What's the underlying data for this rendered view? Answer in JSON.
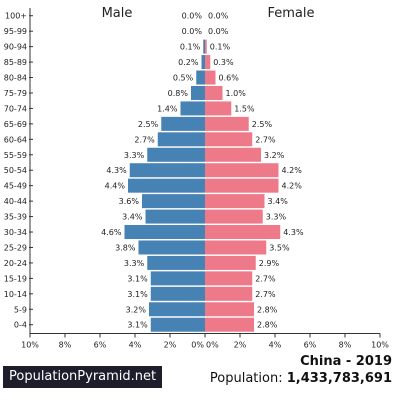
{
  "colors": {
    "male": "#4682b4",
    "female": "#ee7989",
    "axis": "#333333",
    "text": "#222222"
  },
  "chart_data": {
    "type": "bar",
    "orientation": "horizontal-pyramid",
    "categories": [
      "100+",
      "95-99",
      "90-94",
      "85-89",
      "80-84",
      "75-79",
      "70-74",
      "65-69",
      "60-64",
      "55-59",
      "50-54",
      "45-49",
      "40-44",
      "35-39",
      "30-34",
      "25-29",
      "20-24",
      "15-19",
      "10-14",
      "5-9",
      "0-4"
    ],
    "series": [
      {
        "name": "Male",
        "values": [
          0.0,
          0.0,
          0.1,
          0.2,
          0.5,
          0.8,
          1.4,
          2.5,
          2.7,
          3.3,
          4.3,
          4.4,
          3.6,
          3.4,
          4.6,
          3.8,
          3.3,
          3.1,
          3.1,
          3.2,
          3.1
        ],
        "labels": [
          "0.0%",
          "0.0%",
          "0.1%",
          "0.2%",
          "0.5%",
          "0.8%",
          "1.4%",
          "2.5%",
          "2.7%",
          "3.3%",
          "4.3%",
          "4.4%",
          "3.6%",
          "3.4%",
          "4.6%",
          "3.8%",
          "3.3%",
          "3.1%",
          "3.1%",
          "3.2%",
          "3.1%"
        ]
      },
      {
        "name": "Female",
        "values": [
          0.0,
          0.0,
          0.1,
          0.3,
          0.6,
          1.0,
          1.5,
          2.5,
          2.7,
          3.2,
          4.2,
          4.2,
          3.4,
          3.3,
          4.3,
          3.5,
          2.9,
          2.7,
          2.7,
          2.8,
          2.8
        ],
        "labels": [
          "0.0%",
          "0.0%",
          "0.1%",
          "0.3%",
          "0.6%",
          "1.0%",
          "1.5%",
          "2.5%",
          "2.7%",
          "3.2%",
          "4.2%",
          "4.2%",
          "3.4%",
          "3.3%",
          "4.3%",
          "3.5%",
          "2.9%",
          "2.7%",
          "2.7%",
          "2.8%",
          "2.8%"
        ]
      }
    ],
    "xlim": [
      0,
      10
    ],
    "x_ticks": [
      "10%",
      "8%",
      "6%",
      "4%",
      "2%",
      "0%",
      "0%",
      "2%",
      "4%",
      "6%",
      "8%",
      "10%"
    ],
    "grid": false
  },
  "footer": {
    "brand": "PopulationPyramid.net",
    "country_year": "China - 2019",
    "population_label": "Population:",
    "population_value": "1,433,783,691"
  }
}
